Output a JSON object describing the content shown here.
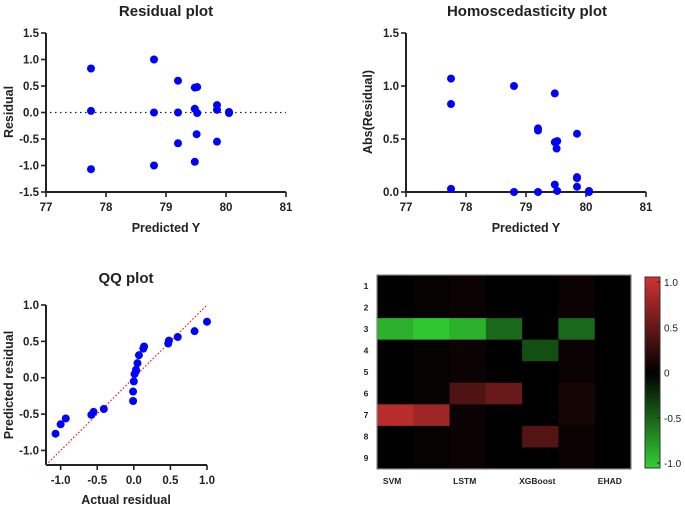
{
  "chart_data": [
    {
      "type": "scatter",
      "title": "Residual plot",
      "xlabel": "Predicted Y",
      "ylabel": "Residual",
      "xlim": [
        77,
        81
      ],
      "ylim": [
        -1.5,
        1.5
      ],
      "xticks": [
        "77",
        "78",
        "79",
        "80",
        "81"
      ],
      "yticks": [
        "1.5",
        "1.0",
        "0.5",
        "0.0",
        "-0.5",
        "-1.0",
        "-1.5"
      ],
      "reference_line": {
        "y": 0,
        "style": "dotted"
      },
      "point_color": "#0000ff",
      "points": [
        [
          77.75,
          0.83
        ],
        [
          77.75,
          0.03
        ],
        [
          77.75,
          -1.07
        ],
        [
          78.8,
          1.0
        ],
        [
          78.8,
          0.0
        ],
        [
          78.8,
          -1.0
        ],
        [
          79.2,
          0.6
        ],
        [
          79.2,
          0.0
        ],
        [
          79.2,
          -0.58
        ],
        [
          79.48,
          0.47
        ],
        [
          79.52,
          0.48
        ],
        [
          79.48,
          0.07
        ],
        [
          79.52,
          -0.01
        ],
        [
          79.51,
          -0.41
        ],
        [
          79.48,
          -0.93
        ],
        [
          79.85,
          0.14
        ],
        [
          79.85,
          0.05
        ],
        [
          79.85,
          -0.55
        ],
        [
          80.05,
          0.01
        ],
        [
          80.05,
          -0.01
        ]
      ]
    },
    {
      "type": "scatter",
      "title": "Homoscedasticity plot",
      "xlabel": "Predicted Y",
      "ylabel": "Abs(Residual)",
      "xlim": [
        77,
        81
      ],
      "ylim": [
        0,
        1.5
      ],
      "xticks": [
        "77",
        "78",
        "79",
        "80",
        "81"
      ],
      "yticks": [
        "1.5",
        "1.0",
        "0.5",
        "0.0"
      ],
      "point_color": "#0000ff",
      "points": [
        [
          77.75,
          1.07
        ],
        [
          77.75,
          0.83
        ],
        [
          77.75,
          0.03
        ],
        [
          78.8,
          1.0
        ],
        [
          78.8,
          0.0
        ],
        [
          79.2,
          0.6
        ],
        [
          79.2,
          0.58
        ],
        [
          79.2,
          0.0
        ],
        [
          79.48,
          0.93
        ],
        [
          79.48,
          0.47
        ],
        [
          79.52,
          0.48
        ],
        [
          79.51,
          0.41
        ],
        [
          79.48,
          0.07
        ],
        [
          79.52,
          0.01
        ],
        [
          79.85,
          0.55
        ],
        [
          79.85,
          0.14
        ],
        [
          79.85,
          0.13
        ],
        [
          79.85,
          0.05
        ],
        [
          80.05,
          0.01
        ],
        [
          80.05,
          0.0
        ]
      ]
    },
    {
      "type": "scatter",
      "title": "QQ plot",
      "xlabel": "Actual residual",
      "ylabel": "Predicted residual",
      "xlim": [
        -1.2,
        1.0
      ],
      "ylim": [
        -1.2,
        1.0
      ],
      "xticks": [
        "-1.0",
        "-0.5",
        "0.0",
        "0.5",
        "1.0"
      ],
      "yticks": [
        "1.0",
        "0.5",
        "0.0",
        "-0.5",
        "-1.0"
      ],
      "reference_line": {
        "type": "identity",
        "style": "dotted",
        "color": "#ff0000"
      },
      "point_color": "#0000ff",
      "points": [
        [
          -1.07,
          -0.77
        ],
        [
          -1.0,
          -0.64
        ],
        [
          -0.93,
          -0.56
        ],
        [
          -0.58,
          -0.51
        ],
        [
          -0.55,
          -0.47
        ],
        [
          -0.41,
          -0.43
        ],
        [
          -0.01,
          -0.32
        ],
        [
          -0.01,
          -0.19
        ],
        [
          0.0,
          -0.05
        ],
        [
          0.01,
          0.05
        ],
        [
          0.03,
          0.09
        ],
        [
          0.03,
          0.11
        ],
        [
          0.05,
          0.2
        ],
        [
          0.07,
          0.31
        ],
        [
          0.13,
          0.4
        ],
        [
          0.14,
          0.43
        ],
        [
          0.47,
          0.47
        ],
        [
          0.48,
          0.51
        ],
        [
          0.6,
          0.56
        ],
        [
          0.83,
          0.64
        ],
        [
          1.0,
          0.77
        ]
      ]
    },
    {
      "type": "heatmap",
      "title": "",
      "columns": [
        "SVM",
        "",
        "LSTM",
        "",
        "XGBoost",
        "",
        "EHAD"
      ],
      "column_labels_shown": [
        "SVM",
        "LSTM",
        "XGBoost",
        "EHAD"
      ],
      "rows": [
        "1",
        "2",
        "3",
        "4",
        "5",
        "6",
        "7",
        "8",
        "9"
      ],
      "colorbar": {
        "range": [
          -1.0,
          1.0
        ],
        "ticks": [
          "1.0",
          "0.5",
          "0",
          "-0.5",
          "-1.0"
        ],
        "high_color": "#d23232",
        "mid_color": "#000000",
        "low_color": "#33d033"
      },
      "values": [
        [
          0.0,
          0.03,
          0.05,
          0.0,
          0.0,
          0.05,
          0.0
        ],
        [
          0.0,
          0.03,
          0.05,
          0.0,
          0.0,
          0.05,
          0.0
        ],
        [
          -0.85,
          -0.95,
          -0.85,
          -0.5,
          0.0,
          -0.5,
          0.0
        ],
        [
          0.0,
          0.03,
          0.05,
          0.0,
          -0.38,
          0.05,
          0.0
        ],
        [
          0.0,
          0.03,
          0.05,
          0.0,
          0.0,
          0.05,
          0.0
        ],
        [
          0.0,
          0.03,
          0.38,
          0.5,
          0.0,
          0.1,
          0.0
        ],
        [
          0.88,
          0.75,
          0.05,
          0.0,
          0.0,
          0.1,
          0.0
        ],
        [
          0.0,
          0.03,
          0.05,
          0.0,
          0.4,
          0.05,
          0.0
        ],
        [
          0.0,
          0.03,
          0.05,
          0.0,
          0.0,
          0.05,
          0.0
        ]
      ]
    }
  ]
}
